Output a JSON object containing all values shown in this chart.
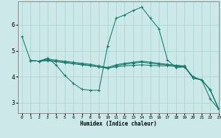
{
  "xlabel": "Humidex (Indice chaleur)",
  "background_color": "#cce8e8",
  "grid_color": "#aad4d4",
  "line_color": "#1a7a6e",
  "xlim": [
    -0.5,
    23
  ],
  "ylim": [
    2.6,
    6.9
  ],
  "xticks": [
    0,
    1,
    2,
    3,
    4,
    5,
    6,
    7,
    8,
    9,
    10,
    11,
    12,
    13,
    14,
    15,
    16,
    17,
    18,
    19,
    20,
    21,
    22,
    23
  ],
  "yticks": [
    3,
    4,
    5,
    6
  ],
  "series": [
    [
      5.55,
      4.62,
      4.6,
      4.72,
      4.45,
      4.05,
      3.75,
      3.52,
      3.48,
      3.48,
      5.18,
      6.25,
      6.38,
      6.55,
      6.68,
      6.25,
      5.85,
      4.65,
      4.35,
      4.38,
      4.0,
      3.88,
      3.15,
      2.75
    ],
    [
      null,
      4.62,
      4.6,
      4.62,
      4.58,
      4.54,
      4.5,
      4.46,
      4.42,
      4.38,
      4.34,
      4.38,
      4.42,
      4.44,
      4.46,
      4.44,
      4.42,
      4.42,
      4.4,
      4.38,
      3.95,
      3.88,
      3.5,
      2.75
    ],
    [
      null,
      4.62,
      4.6,
      4.64,
      4.6,
      4.56,
      4.52,
      4.48,
      4.44,
      4.38,
      4.32,
      4.42,
      4.48,
      4.52,
      4.56,
      4.52,
      4.48,
      4.46,
      4.43,
      4.4,
      3.95,
      3.88,
      3.5,
      2.75
    ],
    [
      null,
      4.62,
      4.6,
      4.68,
      4.64,
      4.6,
      4.56,
      4.52,
      4.48,
      4.42,
      4.36,
      4.46,
      4.52,
      4.56,
      4.6,
      4.56,
      4.52,
      4.48,
      4.44,
      4.42,
      3.95,
      3.88,
      3.5,
      2.75
    ]
  ]
}
